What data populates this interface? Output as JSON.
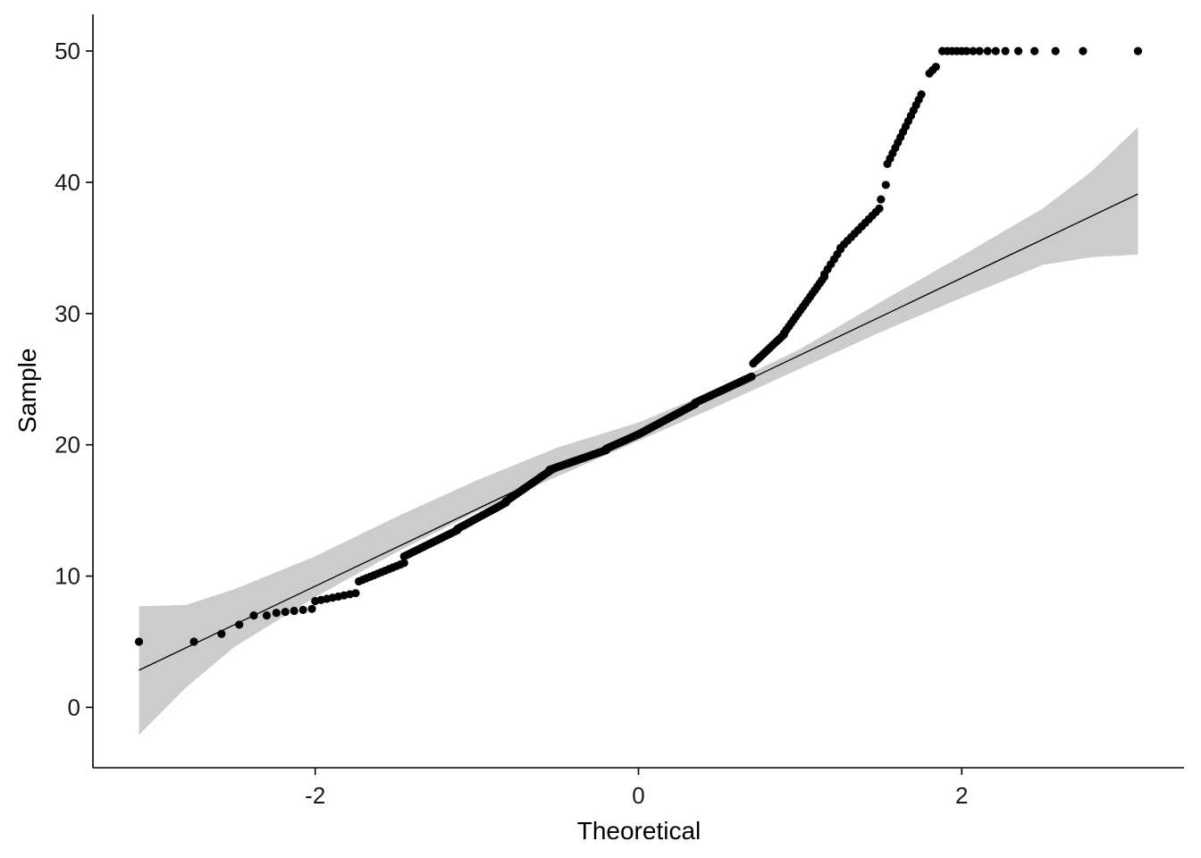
{
  "chart_data": {
    "type": "scatter",
    "title": "",
    "xlabel": "Theoretical",
    "ylabel": "Sample",
    "xlim": [
      -3.375,
      3.375
    ],
    "ylim": [
      -4.6,
      52.8
    ],
    "x_ticks": [
      -2,
      0,
      2
    ],
    "x_tick_labels": [
      "-2",
      "0",
      "2"
    ],
    "y_ticks": [
      0,
      10,
      20,
      30,
      40,
      50
    ],
    "y_tick_labels": [
      "0",
      "10",
      "20",
      "30",
      "40",
      "50"
    ],
    "grid": false,
    "colors": {
      "points": "#000000",
      "reference_line": "#000000",
      "confidence_band": "#cccccc",
      "axis": "#000000"
    },
    "reference_line": {
      "intercept": 20.97,
      "slope": 5.87,
      "x_range": [
        -3.09,
        3.09
      ]
    },
    "confidence_band": {
      "x": [
        -3.09,
        -2.8,
        -2.5,
        -2.0,
        -1.5,
        -1.0,
        -0.5,
        0.0,
        0.5,
        1.0,
        1.5,
        2.0,
        2.5,
        2.8,
        3.09
      ],
      "lower": [
        -2.1,
        1.5,
        4.6,
        8.4,
        11.8,
        14.9,
        17.6,
        20.3,
        23.0,
        25.8,
        28.6,
        31.2,
        33.7,
        34.3,
        34.5
      ],
      "upper": [
        7.7,
        7.8,
        9.0,
        11.5,
        14.5,
        17.3,
        19.8,
        21.7,
        24.3,
        27.3,
        30.9,
        34.4,
        38.0,
        40.8,
        44.2
      ]
    },
    "segments": [
      {
        "x0": -3.09,
        "x1": -3.09,
        "y0": 5.0,
        "y1": 5.0,
        "n": 1
      },
      {
        "x0": -2.75,
        "x1": -2.75,
        "y0": 5.0,
        "y1": 5.0,
        "n": 1
      },
      {
        "x0": -2.58,
        "x1": -2.58,
        "y0": 5.6,
        "y1": 5.6,
        "n": 1
      },
      {
        "x0": -2.47,
        "x1": -2.47,
        "y0": 6.3,
        "y1": 6.3,
        "n": 1
      },
      {
        "x0": -2.38,
        "x1": -2.3,
        "y0": 7.0,
        "y1": 7.0,
        "n": 2
      },
      {
        "x0": -2.24,
        "x1": -2.02,
        "y0": 7.2,
        "y1": 7.5,
        "n": 5
      },
      {
        "x0": -2.0,
        "x1": -1.75,
        "y0": 8.1,
        "y1": 8.7,
        "n": 8
      },
      {
        "x0": -1.73,
        "x1": -1.45,
        "y0": 9.6,
        "y1": 11.0,
        "n": 13
      },
      {
        "x0": -1.45,
        "x1": -1.12,
        "y0": 11.5,
        "y1": 13.5,
        "n": 20
      },
      {
        "x0": -1.12,
        "x1": -0.82,
        "y0": 13.6,
        "y1": 15.6,
        "n": 20
      },
      {
        "x0": -0.82,
        "x1": -0.55,
        "y0": 15.7,
        "y1": 18.0,
        "n": 22
      },
      {
        "x0": -0.55,
        "x1": -0.2,
        "y0": 18.1,
        "y1": 19.6,
        "n": 30
      },
      {
        "x0": -0.2,
        "x1": 0.0,
        "y0": 19.7,
        "y1": 20.8,
        "n": 18
      },
      {
        "x0": 0.0,
        "x1": 0.35,
        "y0": 20.8,
        "y1": 23.1,
        "n": 30
      },
      {
        "x0": 0.35,
        "x1": 0.7,
        "y0": 23.2,
        "y1": 25.2,
        "n": 32
      },
      {
        "x0": 0.71,
        "x1": 0.9,
        "y0": 26.2,
        "y1": 28.4,
        "n": 14
      },
      {
        "x0": 0.9,
        "x1": 1.15,
        "y0": 28.5,
        "y1": 32.8,
        "n": 18
      },
      {
        "x0": 1.15,
        "x1": 1.25,
        "y0": 33.0,
        "y1": 34.9,
        "n": 6
      },
      {
        "x0": 1.25,
        "x1": 1.49,
        "y0": 35.0,
        "y1": 38.0,
        "n": 12
      },
      {
        "x0": 1.5,
        "x1": 1.53,
        "y0": 38.7,
        "y1": 39.8,
        "n": 2
      },
      {
        "x0": 1.54,
        "x1": 1.75,
        "y0": 41.4,
        "y1": 46.7,
        "n": 14
      },
      {
        "x0": 1.8,
        "x1": 1.84,
        "y0": 48.3,
        "y1": 48.8,
        "n": 3
      }
    ],
    "capped_points": {
      "y": 50,
      "x": [
        1.88,
        1.91,
        1.94,
        1.97,
        2.0,
        2.03,
        2.07,
        2.11,
        2.16,
        2.21,
        2.27,
        2.35,
        2.45,
        2.58,
        2.75,
        3.09
      ]
    }
  }
}
